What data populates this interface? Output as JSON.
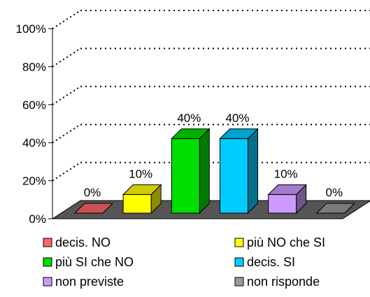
{
  "chart_data": {
    "type": "bar",
    "style": "3d-column",
    "categories": [
      "decis. NO",
      "più NO che SI",
      "più SI che NO",
      "decis. SI",
      "non previste",
      "non risponde"
    ],
    "values": [
      0,
      10,
      40,
      40,
      10,
      0
    ],
    "data_labels": [
      "0%",
      "10%",
      "40%",
      "40%",
      "10%",
      "0%"
    ],
    "colors": [
      "#ff6666",
      "#ffff00",
      "#00dd00",
      "#00ccff",
      "#cc99ff",
      "#999999"
    ],
    "ylim": [
      0,
      100
    ],
    "y_ticks": [
      "0%",
      "20%",
      "40%",
      "60%",
      "80%",
      "100%"
    ],
    "y_tick_values": [
      0,
      20,
      40,
      60,
      80,
      100
    ],
    "gridlines": "dotted",
    "floor_color": "#555555",
    "legend_position": "bottom",
    "title": "",
    "xlabel": "",
    "ylabel": ""
  }
}
